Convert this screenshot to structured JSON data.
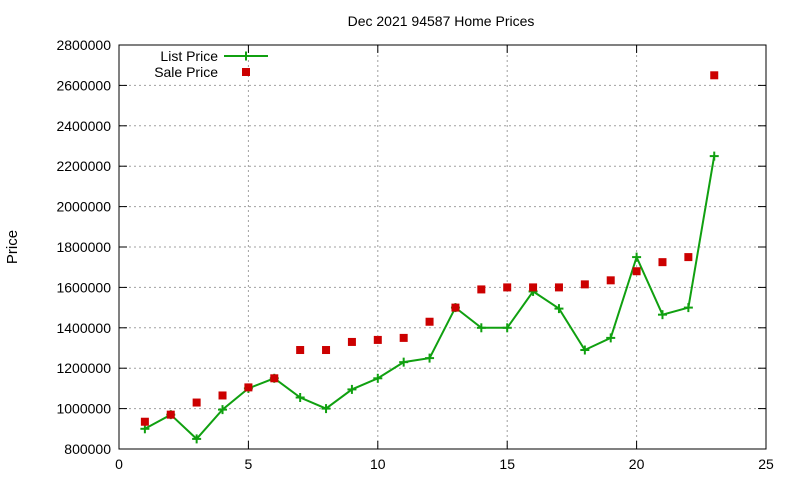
{
  "chart_data": {
    "type": "line",
    "title": "Dec 2021 94587 Home Prices",
    "xlabel": "",
    "ylabel": "Price",
    "xlim": [
      0,
      25
    ],
    "ylim": [
      800000,
      2800000
    ],
    "x_ticks": [
      0,
      5,
      10,
      15,
      20,
      25
    ],
    "y_ticks": [
      800000,
      1000000,
      1200000,
      1400000,
      1600000,
      1800000,
      2000000,
      2200000,
      2400000,
      2600000,
      2800000
    ],
    "grid": true,
    "legend_position": "top-left",
    "series": [
      {
        "name": "List Price",
        "style": "line-points",
        "marker": "plus",
        "color": "#10a010",
        "x": [
          1,
          2,
          3,
          4,
          5,
          6,
          7,
          8,
          9,
          10,
          11,
          12,
          13,
          14,
          15,
          16,
          17,
          18,
          19,
          20,
          21,
          22,
          23
        ],
        "values": [
          900000,
          970000,
          850000,
          995000,
          1100000,
          1150000,
          1055000,
          1000000,
          1095000,
          1150000,
          1230000,
          1250000,
          1500000,
          1400000,
          1400000,
          1580000,
          1495000,
          1290000,
          1350000,
          1750000,
          1465000,
          1500000,
          2250000
        ]
      },
      {
        "name": "Sale Price",
        "style": "points",
        "marker": "square",
        "color": "#cc0000",
        "x": [
          1,
          2,
          3,
          4,
          5,
          6,
          7,
          8,
          9,
          10,
          11,
          12,
          13,
          14,
          15,
          16,
          17,
          18,
          19,
          20,
          21,
          22,
          23
        ],
        "values": [
          935000,
          970000,
          1030000,
          1065000,
          1105000,
          1150000,
          1290000,
          1290000,
          1330000,
          1340000,
          1350000,
          1430000,
          1500000,
          1590000,
          1600000,
          1600000,
          1600000,
          1615000,
          1635000,
          1680000,
          1725000,
          1750000,
          2650000
        ]
      }
    ]
  }
}
